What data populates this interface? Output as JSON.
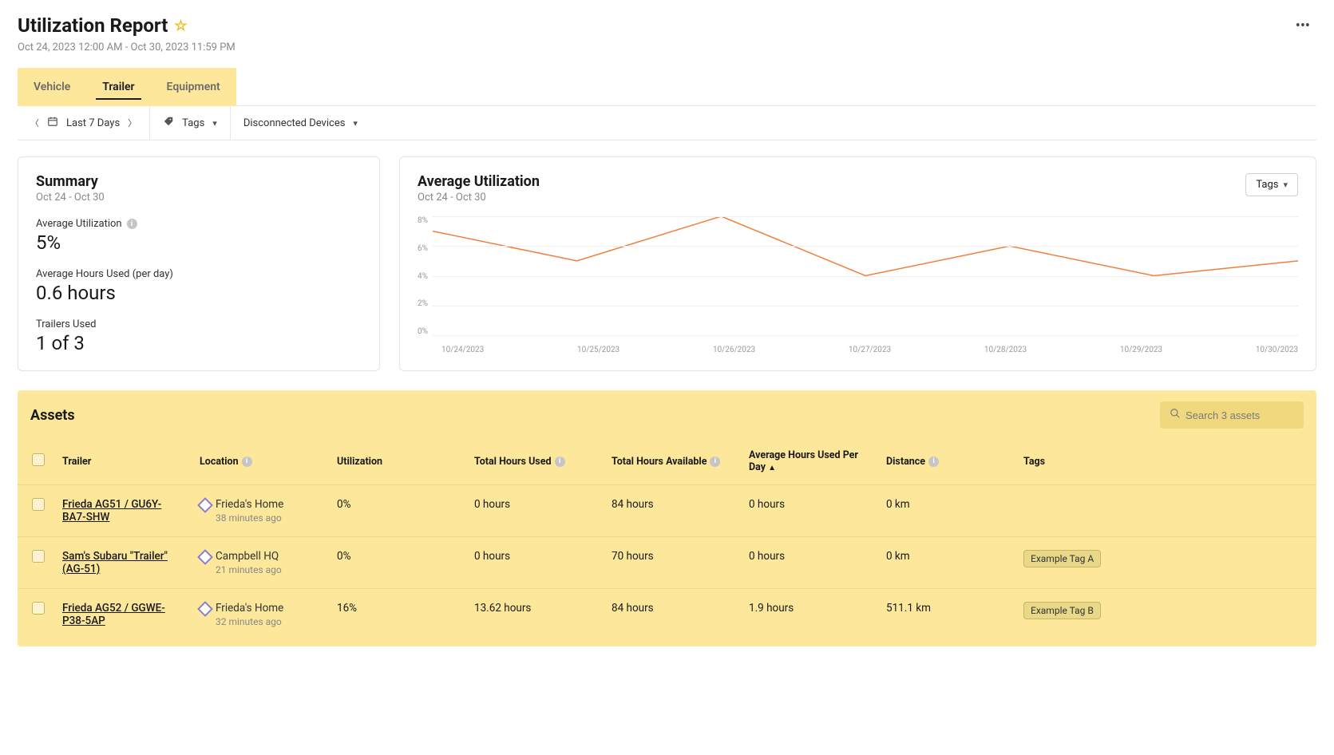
{
  "header": {
    "title": "Utilization Report",
    "date_range": "Oct 24, 2023 12:00 AM - Oct 30, 2023 11:59 PM"
  },
  "tabs": [
    {
      "label": "Vehicle",
      "active": false
    },
    {
      "label": "Trailer",
      "active": true
    },
    {
      "label": "Equipment",
      "active": false
    }
  ],
  "filters": {
    "range_label": "Last 7 Days",
    "tags_label": "Tags",
    "disconnected_label": "Disconnected Devices"
  },
  "summary": {
    "title": "Summary",
    "range": "Oct 24 - Oct 30",
    "avg_util_label": "Average Utilization",
    "avg_util_value": "5%",
    "avg_hours_label": "Average Hours Used (per day)",
    "avg_hours_value": "0.6 hours",
    "trailers_used_label": "Trailers Used",
    "trailers_used_value": "1 of 3"
  },
  "chart": {
    "title": "Average Utilization",
    "range": "Oct 24 - Oct 30",
    "tags_dd_label": "Tags",
    "type": "line",
    "ylim": [
      0,
      8
    ],
    "ytick_step": 2,
    "y_ticks": [
      "8%",
      "6%",
      "4%",
      "2%",
      "0%"
    ],
    "x_labels": [
      "10/24/2023",
      "10/25/2023",
      "10/26/2023",
      "10/27/2023",
      "10/28/2023",
      "10/29/2023",
      "10/30/2023"
    ],
    "values": [
      7,
      5,
      8,
      4,
      6,
      4,
      5
    ],
    "line_color": "#f07f3c",
    "grid_color": "#eeeeee",
    "axis_color": "#d8d8d8",
    "background_color": "#ffffff",
    "line_width": 1.5
  },
  "assets": {
    "title": "Assets",
    "search_placeholder": "Search 3 assets",
    "columns": {
      "trailer": "Trailer",
      "location": "Location",
      "utilization": "Utilization",
      "total_hours_used": "Total Hours Used",
      "total_hours_available": "Total Hours Available",
      "avg_hours_per_day": "Average Hours Used Per Day",
      "distance": "Distance",
      "tags": "Tags"
    },
    "rows": [
      {
        "trailer": "Frieda AG51 / GU6Y-BA7-SHW",
        "location": "Frieda's Home",
        "location_time": "38 minutes ago",
        "utilization": "0%",
        "total_hours_used": "0 hours",
        "total_hours_available": "84 hours",
        "avg_hours_per_day": "0 hours",
        "distance": "0 km",
        "tags": []
      },
      {
        "trailer": "Sam's Subaru \"Trailer\" (AG-51)",
        "location": "Campbell HQ",
        "location_time": "21 minutes ago",
        "utilization": "0%",
        "total_hours_used": "0 hours",
        "total_hours_available": "70 hours",
        "avg_hours_per_day": "0 hours",
        "distance": "0 km",
        "tags": [
          "Example Tag A"
        ]
      },
      {
        "trailer": "Frieda AG52 / GGWE-P38-5AP",
        "location": "Frieda's Home",
        "location_time": "32 minutes ago",
        "utilization": "16%",
        "total_hours_used": "13.62 hours",
        "total_hours_available": "84 hours",
        "avg_hours_per_day": "1.9 hours",
        "distance": "511.1 km",
        "tags": [
          "Example Tag B"
        ]
      }
    ]
  }
}
